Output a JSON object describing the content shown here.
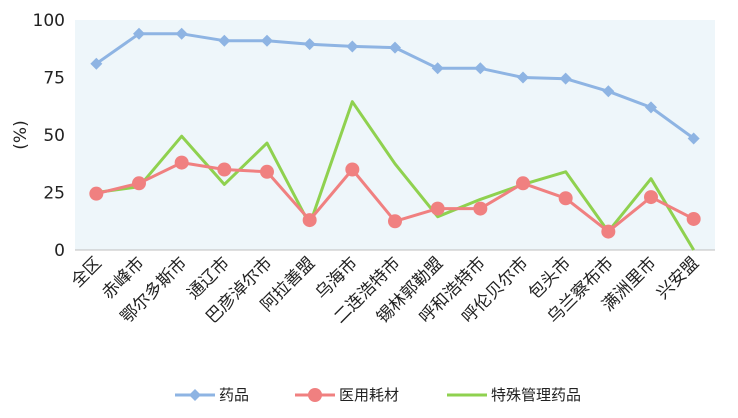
{
  "chart_data": {
    "type": "line",
    "ylabel": "(%)",
    "ylim": [
      0,
      100
    ],
    "yticks": [
      0,
      25,
      50,
      75,
      100
    ],
    "grid": false,
    "plot_background": "#eef6fa",
    "legend_position": "bottom",
    "categories": [
      "全区",
      "赤峰市",
      "鄂尔多斯市",
      "通辽市",
      "巴彦淖尔市",
      "阿拉善盟",
      "乌海市",
      "二连浩特市",
      "锡林郭勒盟",
      "呼和浩特市",
      "呼伦贝尔市",
      "包头市",
      "乌兰察布市",
      "满洲里市",
      "兴安盟"
    ],
    "series": [
      {
        "name": "药品",
        "color": "#8eb4e3",
        "marker": "diamond",
        "values": [
          81,
          94,
          94,
          91,
          91,
          89.5,
          88.5,
          88,
          79,
          79,
          75,
          74.5,
          69,
          62,
          48.5
        ]
      },
      {
        "name": "医用耗材",
        "color": "#f08080",
        "marker": "circle",
        "values": [
          24.5,
          29,
          38,
          35,
          34,
          13,
          35,
          12.5,
          18,
          18,
          29,
          22.5,
          8,
          23,
          13.5
        ]
      },
      {
        "name": "特殊管理药品",
        "color": "#8fd14f",
        "marker": "none",
        "values": [
          25,
          27.5,
          49.5,
          28.5,
          46.5,
          11,
          64.5,
          37.5,
          14.5,
          22,
          28.5,
          34,
          8,
          31,
          0
        ]
      }
    ]
  }
}
